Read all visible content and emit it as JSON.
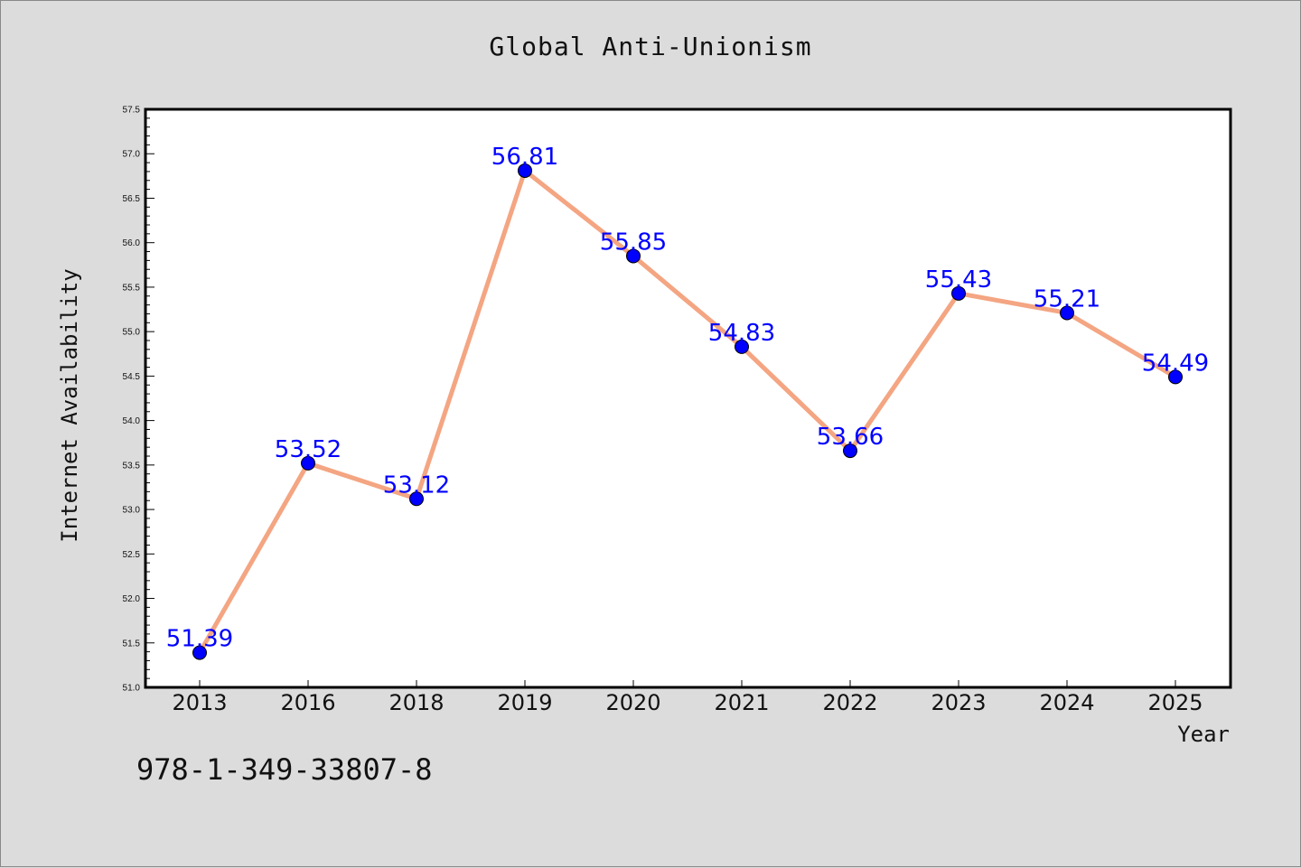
{
  "chart_data": {
    "type": "line",
    "title": "Global Anti-Unionism",
    "xlabel": "Year",
    "ylabel": "Internet Availability",
    "categories": [
      "2013",
      "2016",
      "2018",
      "2019",
      "2020",
      "2021",
      "2022",
      "2023",
      "2024",
      "2025"
    ],
    "values": [
      51.39,
      53.52,
      53.12,
      56.81,
      55.85,
      54.83,
      53.66,
      55.43,
      55.21,
      54.49
    ],
    "data_labels": [
      "51.39",
      "53.52",
      "53.12",
      "56.81",
      "55.85",
      "54.83",
      "53.66",
      "55.43",
      "55.21",
      "54.49"
    ],
    "ylim": [
      51.0,
      57.5
    ],
    "yticks": [
      "51.0",
      "51.5",
      "52.0",
      "52.5",
      "53.0",
      "53.5",
      "54.0",
      "54.5",
      "55.0",
      "55.5",
      "56.0",
      "56.5",
      "57.0",
      "57.5"
    ],
    "grid": false,
    "line_color": "#f4a582",
    "marker_color": "#0000ff",
    "label_color": "#0000ff",
    "background_color": "#dcdcdc",
    "plot_background": "#ffffff"
  },
  "footer": {
    "code": "978-1-349-33807-8"
  }
}
